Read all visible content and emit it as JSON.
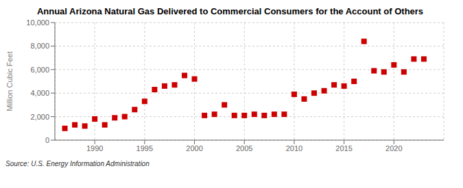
{
  "chart_data": {
    "type": "scatter",
    "title": "Annual Arizona Natural Gas Delivered to Commercial Consumers for the Account of Others",
    "y_label": "Million Cubic Feet",
    "annotations": [
      "Source: U.S. Energy Information Administration"
    ],
    "x": [
      1987,
      1988,
      1989,
      1990,
      1991,
      1992,
      1993,
      1994,
      1995,
      1996,
      1997,
      1998,
      1999,
      2000,
      2001,
      2002,
      2003,
      2004,
      2005,
      2006,
      2007,
      2008,
      2009,
      2010,
      2011,
      2012,
      2013,
      2014,
      2015,
      2016,
      2017,
      2018,
      2019,
      2020,
      2021,
      2022,
      2023
    ],
    "values": [
      1000,
      1300,
      1200,
      1800,
      1300,
      1900,
      2000,
      2600,
      3300,
      4300,
      4600,
      4700,
      5500,
      5200,
      2100,
      2200,
      3000,
      2100,
      2100,
      2200,
      2100,
      2200,
      2200,
      3900,
      3500,
      4000,
      4200,
      4700,
      4600,
      5000,
      8400,
      5900,
      5800,
      6400,
      5800,
      6900,
      6900
    ],
    "color": "#cc0000",
    "marker": "square",
    "xlim": [
      1986,
      2025
    ],
    "xticks": [
      1990,
      1995,
      2000,
      2005,
      2010,
      2015,
      2020
    ],
    "ylim": [
      0,
      10000
    ],
    "yticks": [
      0,
      {
        "value": 2000,
        "label": "2,000"
      },
      {
        "value": 4000,
        "label": "4,000"
      },
      {
        "value": 6000,
        "label": "6,000"
      },
      {
        "value": 8000,
        "label": "8,000"
      },
      {
        "value": 10000,
        "label": "10,000"
      }
    ],
    "grid": true
  }
}
